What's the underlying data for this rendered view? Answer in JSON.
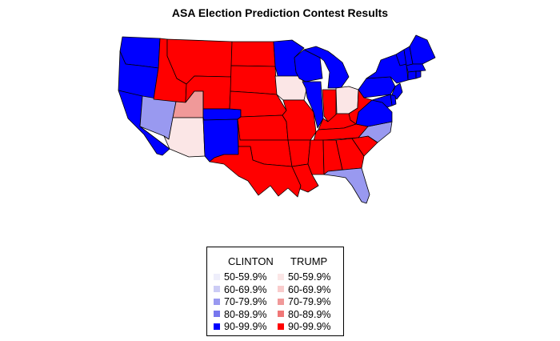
{
  "title": "ASA Election Prediction Contest Results",
  "colors": {
    "clinton": {
      "50": "#eeeefb",
      "60": "#ccccf5",
      "70": "#9999f0",
      "80": "#7777ee",
      "90": "#0000ff"
    },
    "trump": {
      "50": "#fbe6e6",
      "60": "#f9cccc",
      "70": "#f09999",
      "80": "#f07777",
      "90": "#ff0000"
    }
  },
  "states": [
    {
      "name": "WA",
      "candidate": "clinton",
      "bin": "90"
    },
    {
      "name": "OR",
      "candidate": "clinton",
      "bin": "90"
    },
    {
      "name": "CA",
      "candidate": "clinton",
      "bin": "90"
    },
    {
      "name": "NV",
      "candidate": "clinton",
      "bin": "70"
    },
    {
      "name": "ID",
      "candidate": "trump",
      "bin": "90"
    },
    {
      "name": "MT",
      "candidate": "trump",
      "bin": "90"
    },
    {
      "name": "WY",
      "candidate": "trump",
      "bin": "90"
    },
    {
      "name": "UT",
      "candidate": "trump",
      "bin": "70"
    },
    {
      "name": "AZ",
      "candidate": "trump",
      "bin": "50"
    },
    {
      "name": "CO",
      "candidate": "clinton",
      "bin": "90"
    },
    {
      "name": "NM",
      "candidate": "clinton",
      "bin": "90"
    },
    {
      "name": "ND",
      "candidate": "trump",
      "bin": "90"
    },
    {
      "name": "SD",
      "candidate": "trump",
      "bin": "90"
    },
    {
      "name": "NE",
      "candidate": "trump",
      "bin": "90"
    },
    {
      "name": "KS",
      "candidate": "trump",
      "bin": "90"
    },
    {
      "name": "OK",
      "candidate": "trump",
      "bin": "90"
    },
    {
      "name": "TX",
      "candidate": "trump",
      "bin": "90"
    },
    {
      "name": "MN",
      "candidate": "clinton",
      "bin": "90"
    },
    {
      "name": "IA",
      "candidate": "trump",
      "bin": "50"
    },
    {
      "name": "MO",
      "candidate": "trump",
      "bin": "90"
    },
    {
      "name": "AR",
      "candidate": "trump",
      "bin": "90"
    },
    {
      "name": "LA",
      "candidate": "trump",
      "bin": "90"
    },
    {
      "name": "WI",
      "candidate": "clinton",
      "bin": "90"
    },
    {
      "name": "IL",
      "candidate": "clinton",
      "bin": "90"
    },
    {
      "name": "MI",
      "candidate": "clinton",
      "bin": "90"
    },
    {
      "name": "IN",
      "candidate": "trump",
      "bin": "90"
    },
    {
      "name": "OH",
      "candidate": "trump",
      "bin": "50"
    },
    {
      "name": "KY",
      "candidate": "trump",
      "bin": "90"
    },
    {
      "name": "TN",
      "candidate": "trump",
      "bin": "90"
    },
    {
      "name": "MS",
      "candidate": "trump",
      "bin": "90"
    },
    {
      "name": "AL",
      "candidate": "trump",
      "bin": "90"
    },
    {
      "name": "GA",
      "candidate": "trump",
      "bin": "90"
    },
    {
      "name": "FL",
      "candidate": "clinton",
      "bin": "70"
    },
    {
      "name": "SC",
      "candidate": "trump",
      "bin": "90"
    },
    {
      "name": "NC",
      "candidate": "clinton",
      "bin": "70"
    },
    {
      "name": "VA",
      "candidate": "clinton",
      "bin": "90"
    },
    {
      "name": "WV",
      "candidate": "trump",
      "bin": "90"
    },
    {
      "name": "PA",
      "candidate": "clinton",
      "bin": "90"
    },
    {
      "name": "NY",
      "candidate": "clinton",
      "bin": "90"
    },
    {
      "name": "VT",
      "candidate": "clinton",
      "bin": "90"
    },
    {
      "name": "NH",
      "candidate": "clinton",
      "bin": "90"
    },
    {
      "name": "ME",
      "candidate": "clinton",
      "bin": "90"
    },
    {
      "name": "MA",
      "candidate": "clinton",
      "bin": "90"
    },
    {
      "name": "CT",
      "candidate": "clinton",
      "bin": "90"
    },
    {
      "name": "RI",
      "candidate": "clinton",
      "bin": "90"
    },
    {
      "name": "NJ",
      "candidate": "clinton",
      "bin": "90"
    },
    {
      "name": "DE",
      "candidate": "clinton",
      "bin": "90"
    },
    {
      "name": "MD",
      "candidate": "clinton",
      "bin": "90"
    }
  ],
  "legend": {
    "clinton_header": "CLINTON",
    "trump_header": "TRUMP",
    "clinton_items": [
      {
        "label": "50-59.9%",
        "bin": "50"
      },
      {
        "label": "60-69.9%",
        "bin": "60"
      },
      {
        "label": "70-79.9%",
        "bin": "70"
      },
      {
        "label": "80-89.9%",
        "bin": "80"
      },
      {
        "label": "90-99.9%",
        "bin": "90"
      }
    ],
    "trump_items": [
      {
        "label": "50-59.9%",
        "bin": "50"
      },
      {
        "label": "60-69.9%",
        "bin": "60"
      },
      {
        "label": "70-79.9%",
        "bin": "70"
      },
      {
        "label": "80-89.9%",
        "bin": "80"
      },
      {
        "label": "90-99.9%",
        "bin": "90"
      }
    ]
  }
}
